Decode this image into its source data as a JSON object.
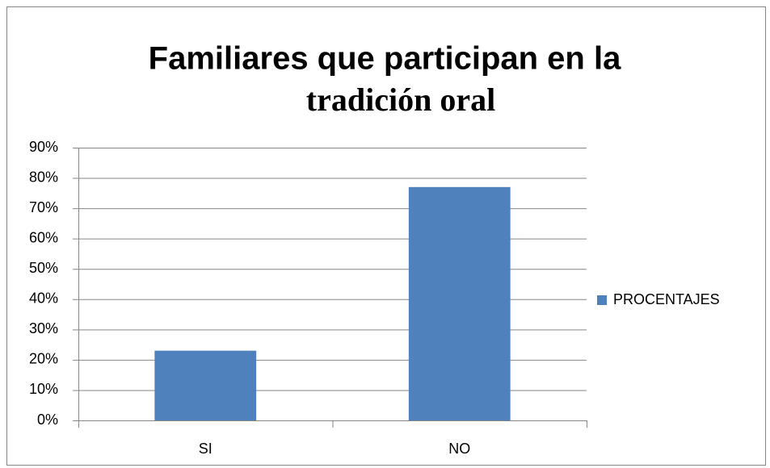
{
  "chart_data": {
    "type": "bar",
    "title": [
      "Familiares que participan en la",
      "tradición oral"
    ],
    "categories": [
      "SI",
      "NO"
    ],
    "series": [
      {
        "name": "PROCENTAJES",
        "color": "#4f81bd",
        "values": [
          23,
          77
        ]
      }
    ],
    "ylim": [
      0,
      90
    ],
    "yticks": [
      {
        "value": 0,
        "label": "0%"
      },
      {
        "value": 10,
        "label": "10%"
      },
      {
        "value": 20,
        "label": "20%"
      },
      {
        "value": 30,
        "label": "30%"
      },
      {
        "value": 40,
        "label": "40%"
      },
      {
        "value": 50,
        "label": "50%"
      },
      {
        "value": 60,
        "label": "60%"
      },
      {
        "value": 70,
        "label": "70%"
      },
      {
        "value": 80,
        "label": "80%"
      },
      {
        "value": 90,
        "label": "90%"
      }
    ],
    "grid": true,
    "legend": "right"
  }
}
